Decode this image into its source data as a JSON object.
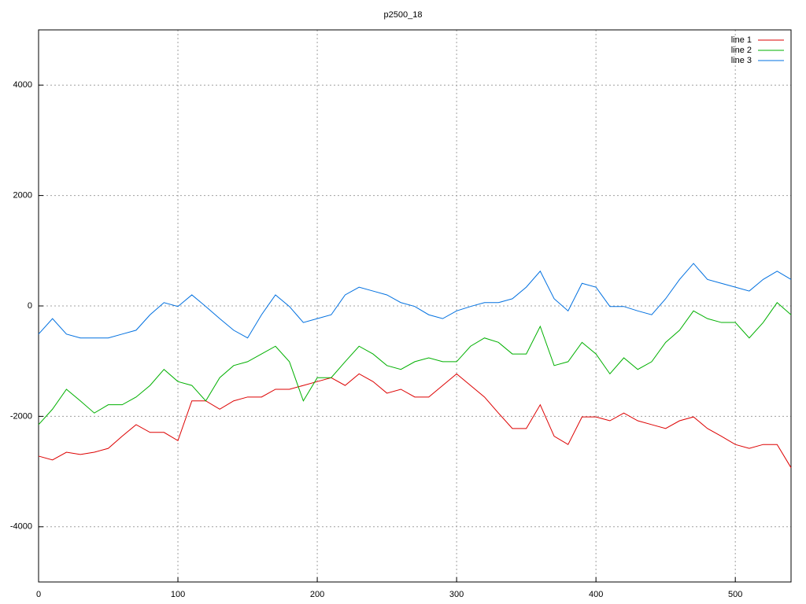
{
  "chart_data": {
    "type": "line",
    "title": "p2500_18",
    "x": [
      0,
      10,
      20,
      30,
      40,
      50,
      60,
      70,
      80,
      90,
      100,
      110,
      120,
      130,
      140,
      150,
      160,
      170,
      180,
      190,
      200,
      210,
      220,
      230,
      240,
      250,
      260,
      270,
      280,
      290,
      300,
      310,
      320,
      330,
      340,
      350,
      360,
      370,
      380,
      390,
      400,
      410,
      420,
      430,
      440,
      450,
      460,
      470,
      480,
      490,
      500,
      510,
      520,
      530,
      540
    ],
    "series": [
      {
        "name": "line 1",
        "color": "#dd0000",
        "values": [
          -2720,
          -2790,
          -2650,
          -2690,
          -2650,
          -2580,
          -2360,
          -2150,
          -2290,
          -2290,
          -2440,
          -1720,
          -1720,
          -1870,
          -1720,
          -1650,
          -1650,
          -1510,
          -1510,
          -1440,
          -1370,
          -1300,
          -1440,
          -1230,
          -1370,
          -1580,
          -1510,
          -1650,
          -1650,
          -1440,
          -1230,
          -1440,
          -1650,
          -1940,
          -2220,
          -2220,
          -1790,
          -2360,
          -2510,
          -2010,
          -2010,
          -2080,
          -1940,
          -2080,
          -2150,
          -2220,
          -2080,
          -2010,
          -2220,
          -2360,
          -2510,
          -2580,
          -2510,
          -2510,
          -2930
        ]
      },
      {
        "name": "line 2",
        "color": "#00b000",
        "values": [
          -2150,
          -1870,
          -1510,
          -1720,
          -1940,
          -1790,
          -1790,
          -1650,
          -1440,
          -1150,
          -1370,
          -1440,
          -1720,
          -1300,
          -1080,
          -1010,
          -870,
          -730,
          -1010,
          -1720,
          -1300,
          -1300,
          -1010,
          -730,
          -870,
          -1080,
          -1150,
          -1010,
          -940,
          -1010,
          -1010,
          -730,
          -580,
          -660,
          -870,
          -870,
          -370,
          -1080,
          -1010,
          -660,
          -870,
          -1230,
          -940,
          -1150,
          -1010,
          -660,
          -440,
          -90,
          -230,
          -300,
          -300,
          -580,
          -300,
          60,
          -160
        ]
      },
      {
        "name": "line 3",
        "color": "#0070e0",
        "values": [
          -510,
          -230,
          -510,
          -580,
          -580,
          -580,
          -510,
          -440,
          -160,
          60,
          -10,
          200,
          -10,
          -230,
          -440,
          -580,
          -160,
          200,
          -10,
          -300,
          -230,
          -160,
          200,
          340,
          270,
          200,
          60,
          -10,
          -160,
          -230,
          -90,
          -10,
          60,
          60,
          130,
          340,
          630,
          130,
          -90,
          410,
          340,
          -10,
          -10,
          -90,
          -160,
          130,
          480,
          770,
          480,
          410,
          340,
          270,
          480,
          630,
          480
        ]
      }
    ],
    "xlim": [
      0,
      540
    ],
    "ylim": [
      -5000,
      5000
    ],
    "xticks": [
      0,
      100,
      200,
      300,
      400,
      500
    ],
    "yticks": [
      -4000,
      -2000,
      0,
      2000,
      4000
    ],
    "grid": true,
    "legend": "top-right"
  }
}
